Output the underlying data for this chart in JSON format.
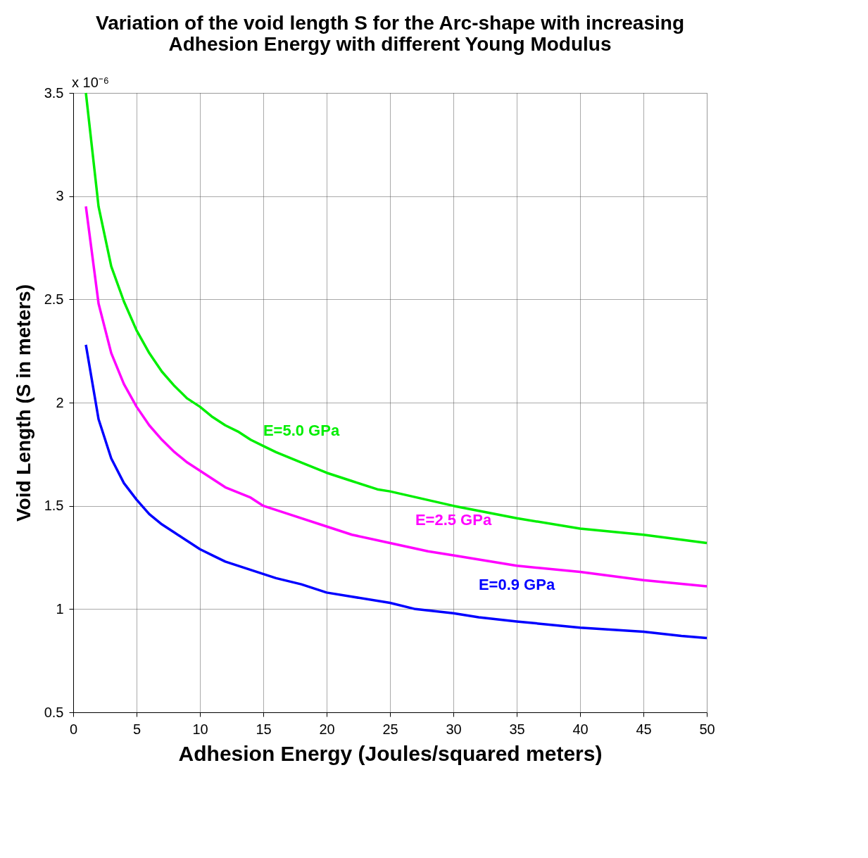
{
  "chart_data": {
    "type": "line",
    "title": [
      "Variation of the void length S for the Arc-shape with increasing",
      "Adhesion Energy with different Young Modulus"
    ],
    "xlabel": "Adhesion Energy (Joules/squared meters)",
    "ylabel": "Void Length (S in meters)",
    "annotations": [
      "x 10⁻⁶"
    ],
    "xlim": [
      0,
      50
    ],
    "ylim": [
      0.5,
      3.5
    ],
    "xticks": [
      0,
      5,
      10,
      15,
      20,
      25,
      30,
      35,
      40,
      45,
      50
    ],
    "yticks": [
      0.5,
      1,
      1.5,
      2,
      2.5,
      3,
      3.5
    ],
    "grid": true,
    "legend": false,
    "marker": "none",
    "line_style": "solid",
    "series": [
      {
        "name": "E=5.0 GPa",
        "color": "#00ee00",
        "x": [
          1,
          2,
          3,
          4,
          5,
          6,
          7,
          8,
          9,
          10,
          11,
          12,
          13,
          14,
          15,
          16,
          18,
          20,
          22,
          24,
          25,
          30,
          35,
          40,
          45,
          50
        ],
        "values": [
          3.5,
          2.95,
          2.66,
          2.49,
          2.35,
          2.24,
          2.15,
          2.08,
          2.02,
          1.98,
          1.93,
          1.89,
          1.86,
          1.82,
          1.79,
          1.76,
          1.71,
          1.66,
          1.62,
          1.58,
          1.57,
          1.5,
          1.44,
          1.39,
          1.36,
          1.32
        ]
      },
      {
        "name": "E=2.5 GPa",
        "color": "#ff00ff",
        "x": [
          1,
          2,
          3,
          4,
          5,
          6,
          7,
          8,
          9,
          10,
          12,
          14,
          15,
          17,
          20,
          22,
          25,
          28,
          30,
          35,
          40,
          45,
          50
        ],
        "values": [
          2.95,
          2.48,
          2.24,
          2.09,
          1.98,
          1.89,
          1.82,
          1.76,
          1.71,
          1.67,
          1.59,
          1.54,
          1.5,
          1.46,
          1.4,
          1.36,
          1.32,
          1.28,
          1.26,
          1.21,
          1.18,
          1.14,
          1.11
        ]
      },
      {
        "name": "E=0.9 GPa",
        "color": "#0000ff",
        "x": [
          1,
          2,
          3,
          4,
          5,
          6,
          7,
          8,
          9,
          10,
          11,
          12,
          14,
          16,
          18,
          20,
          22,
          25,
          27,
          30,
          32,
          35,
          40,
          45,
          48,
          50
        ],
        "values": [
          2.28,
          1.92,
          1.73,
          1.61,
          1.53,
          1.46,
          1.41,
          1.37,
          1.33,
          1.29,
          1.26,
          1.23,
          1.19,
          1.15,
          1.12,
          1.08,
          1.06,
          1.03,
          1.0,
          0.98,
          0.96,
          0.94,
          0.91,
          0.89,
          0.87,
          0.86
        ]
      }
    ]
  }
}
